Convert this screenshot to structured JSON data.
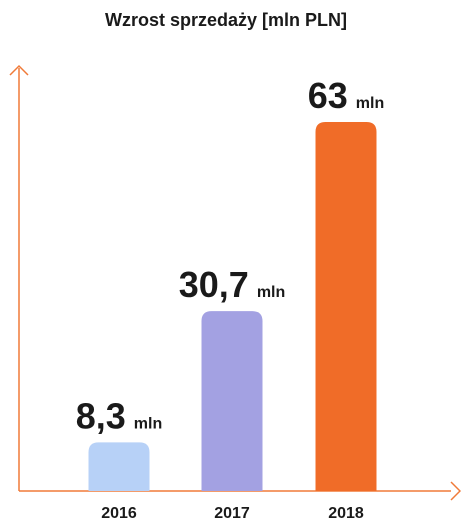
{
  "chart_data": {
    "type": "bar",
    "title": "Wzrost sprzedaży [mln PLN]",
    "categories": [
      "2016",
      "2017",
      "2018"
    ],
    "values": [
      8.3,
      30.7,
      63
    ],
    "value_labels": [
      "8,3",
      "30,7",
      "63"
    ],
    "unit_label": "mln",
    "ylim": [
      0,
      63
    ],
    "grid": false,
    "bar_colors": [
      "#b7d1f7",
      "#a3a1e2",
      "#f06c28"
    ],
    "axis_color": "#f07a38"
  }
}
